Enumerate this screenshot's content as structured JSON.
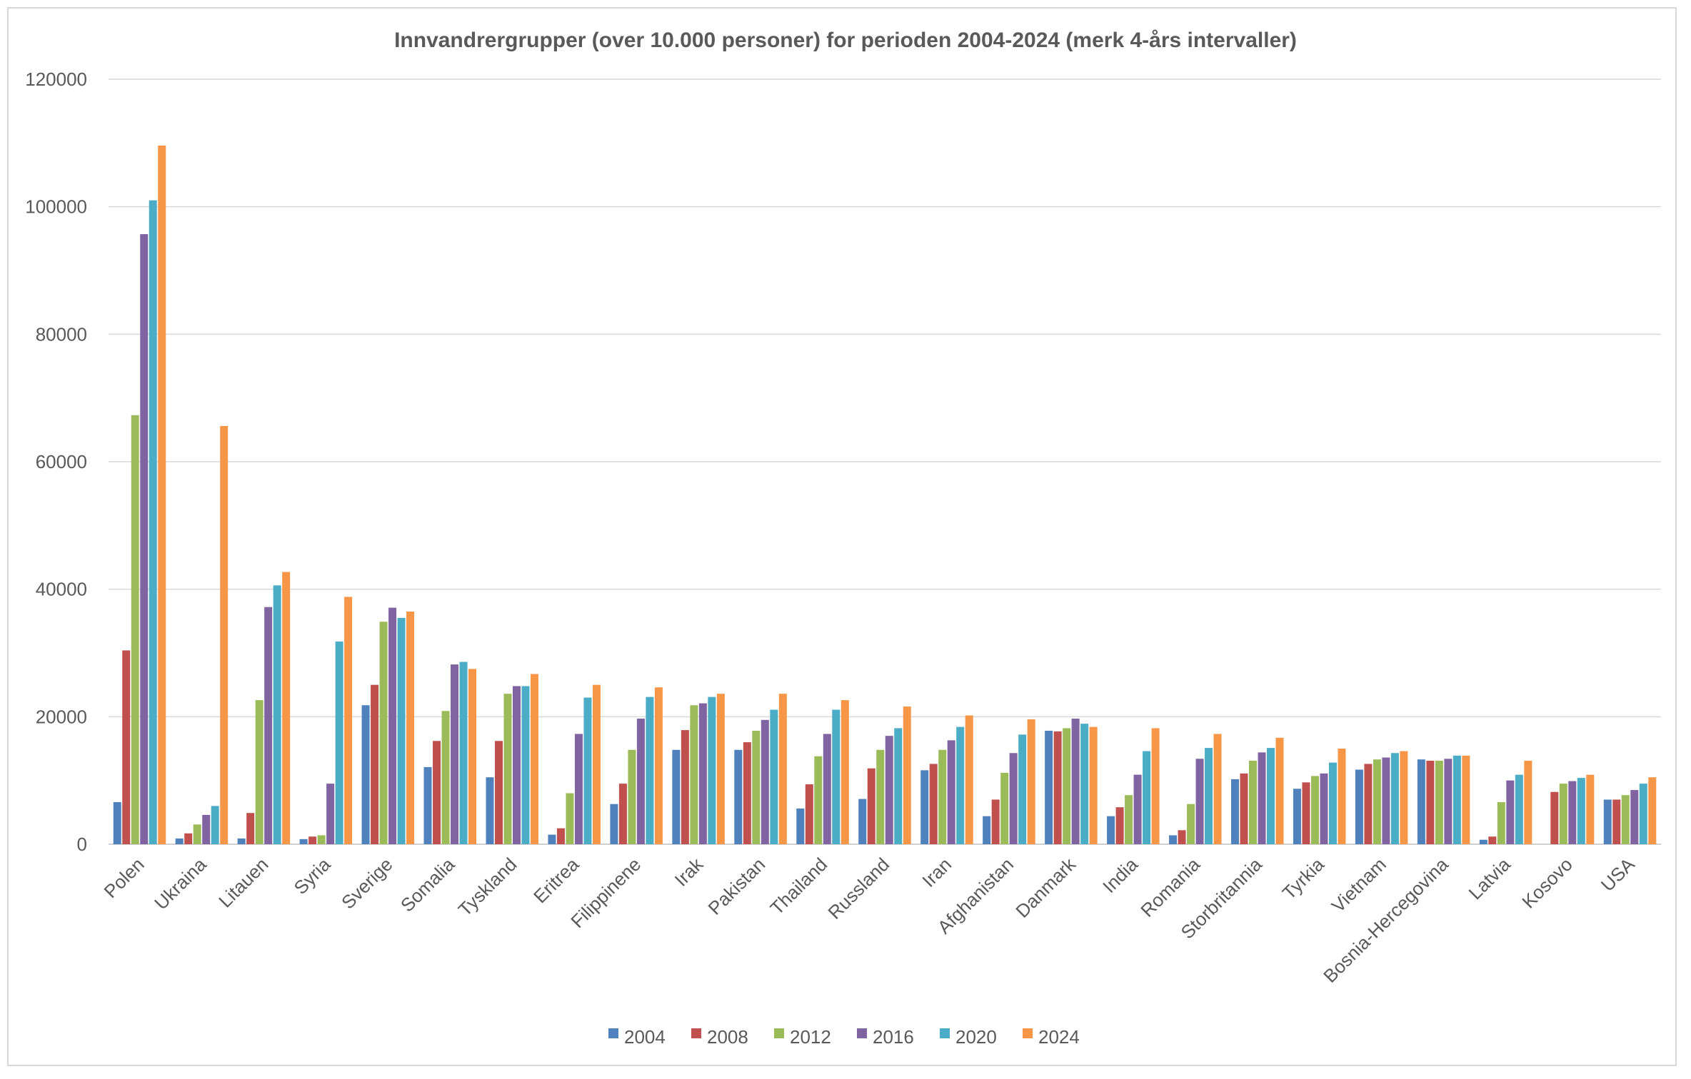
{
  "chart_data": {
    "type": "bar",
    "title": "Innvandrergrupper (over 10.000 personer) for perioden 2004-2024 (merk 4-års intervaller)",
    "xlabel": "",
    "ylabel": "",
    "ylim": [
      0,
      120000
    ],
    "yticks": [
      "0",
      "20000",
      "40000",
      "60000",
      "80000",
      "100000",
      "120000"
    ],
    "grid": true,
    "legend_position": "bottom",
    "categories": [
      "Polen",
      "Ukraina",
      "Litauen",
      "Syria",
      "Sverige",
      "Somalia",
      "Tyskland",
      "Eritrea",
      "Filippinene",
      "Irak",
      "Pakistan",
      "Thailand",
      "Russland",
      "Iran",
      "Afghanistan",
      "Danmark",
      "India",
      "Romania",
      "Storbritannia",
      "Tyrkia",
      "Vietnam",
      "Bosnia-Hercegovina",
      "Latvia",
      "Kosovo",
      "USA"
    ],
    "series": [
      {
        "name": "2004",
        "color": "#4F81BD",
        "values": [
          6600,
          900,
          900,
          800,
          21800,
          12100,
          10500,
          1500,
          6300,
          14800,
          14800,
          5600,
          7100,
          11600,
          4400,
          17800,
          4400,
          1400,
          10200,
          8700,
          11700,
          13300,
          700,
          0,
          7000
        ]
      },
      {
        "name": "2008",
        "color": "#C0504D",
        "values": [
          30400,
          1700,
          4900,
          1200,
          25000,
          16200,
          16200,
          2500,
          9500,
          17900,
          16000,
          9400,
          11900,
          12600,
          7000,
          17700,
          5800,
          2200,
          11100,
          9700,
          12600,
          13100,
          1200,
          8200,
          7000
        ]
      },
      {
        "name": "2012",
        "color": "#9BBB59",
        "values": [
          67300,
          3100,
          22600,
          1400,
          34900,
          20900,
          23600,
          8000,
          14800,
          21800,
          17800,
          13800,
          14800,
          14800,
          11200,
          18200,
          7700,
          6300,
          13100,
          10700,
          13300,
          13100,
          6600,
          9500,
          7700
        ]
      },
      {
        "name": "2016",
        "color": "#8064A2",
        "values": [
          95700,
          4600,
          37200,
          9500,
          37100,
          28200,
          24800,
          17300,
          19700,
          22100,
          19500,
          17300,
          17000,
          16300,
          14300,
          19700,
          10900,
          13400,
          14400,
          11100,
          13600,
          13400,
          10000,
          9900,
          8500
        ]
      },
      {
        "name": "2020",
        "color": "#4BACC6",
        "values": [
          101000,
          6000,
          40600,
          31800,
          35500,
          28600,
          24800,
          23000,
          23100,
          23100,
          21100,
          21100,
          18200,
          18400,
          17200,
          18900,
          14600,
          15100,
          15100,
          12800,
          14300,
          13900,
          10900,
          10400,
          9500
        ]
      },
      {
        "name": "2024",
        "color": "#F79646",
        "values": [
          109600,
          65600,
          42700,
          38800,
          36500,
          27500,
          26700,
          25000,
          24600,
          23600,
          23600,
          22600,
          21600,
          20200,
          19600,
          18400,
          18200,
          17300,
          16700,
          15000,
          14600,
          13900,
          13100,
          10900,
          10500
        ]
      }
    ]
  }
}
